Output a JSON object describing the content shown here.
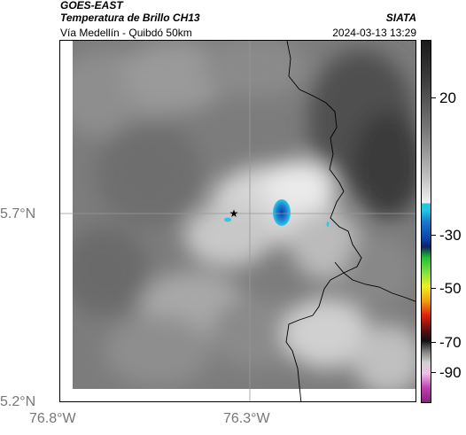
{
  "header": {
    "satellite": "GOES-EAST",
    "product": "Temperatura de Brillo CH13",
    "location": "Vía Medellín - Quibdó 50km",
    "organization": "SIATA",
    "timestamp": "2024-03-13 13:29"
  },
  "axes": {
    "lat_labels": [
      "5.7°N",
      "5.2°N"
    ],
    "lon_labels": [
      "76.8°W",
      "76.3°W"
    ]
  },
  "colorbar": {
    "ticks": [
      "20",
      "-30",
      "-50",
      "-70",
      "-90"
    ],
    "colors": {
      "warm_dark": "#1a1a1a",
      "warm_light": "#f2f2f2",
      "cyan": "#20c8e0",
      "blue": "#0a3fa8",
      "green": "#20c030",
      "yellow": "#f0f020",
      "red": "#e02010",
      "magenta": "#c040b0"
    }
  },
  "map": {
    "marker_icon": "star-icon",
    "gridline_color": "#888888",
    "coast_color": "#000000"
  }
}
